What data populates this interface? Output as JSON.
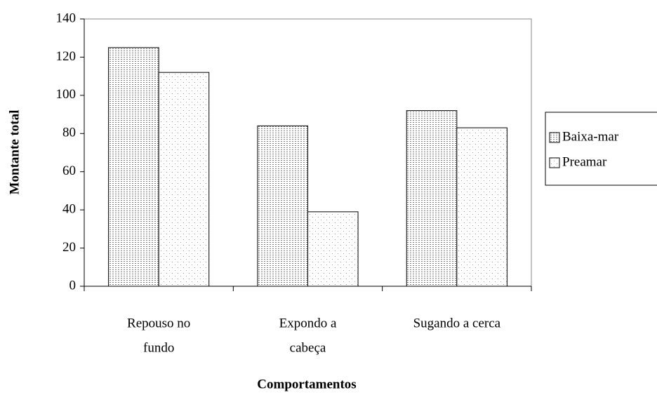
{
  "chart_data": {
    "type": "bar",
    "categories": [
      [
        "Repouso no",
        "fundo"
      ],
      [
        "Expondo a",
        "cabeça"
      ],
      [
        "Sugando a cerca"
      ]
    ],
    "series": [
      {
        "name": "Baixa-mar",
        "color": "#7a7a7a",
        "values": [
          125,
          84,
          92
        ]
      },
      {
        "name": "Preamar",
        "color": "#9a9a9a",
        "values": [
          112,
          39,
          83
        ]
      }
    ],
    "ylabel": "Montante total",
    "xlabel": "Comportamentos",
    "ylim": [
      0,
      140
    ],
    "yticks": [
      0,
      20,
      40,
      60,
      80,
      100,
      120,
      140
    ],
    "legend": "right"
  }
}
